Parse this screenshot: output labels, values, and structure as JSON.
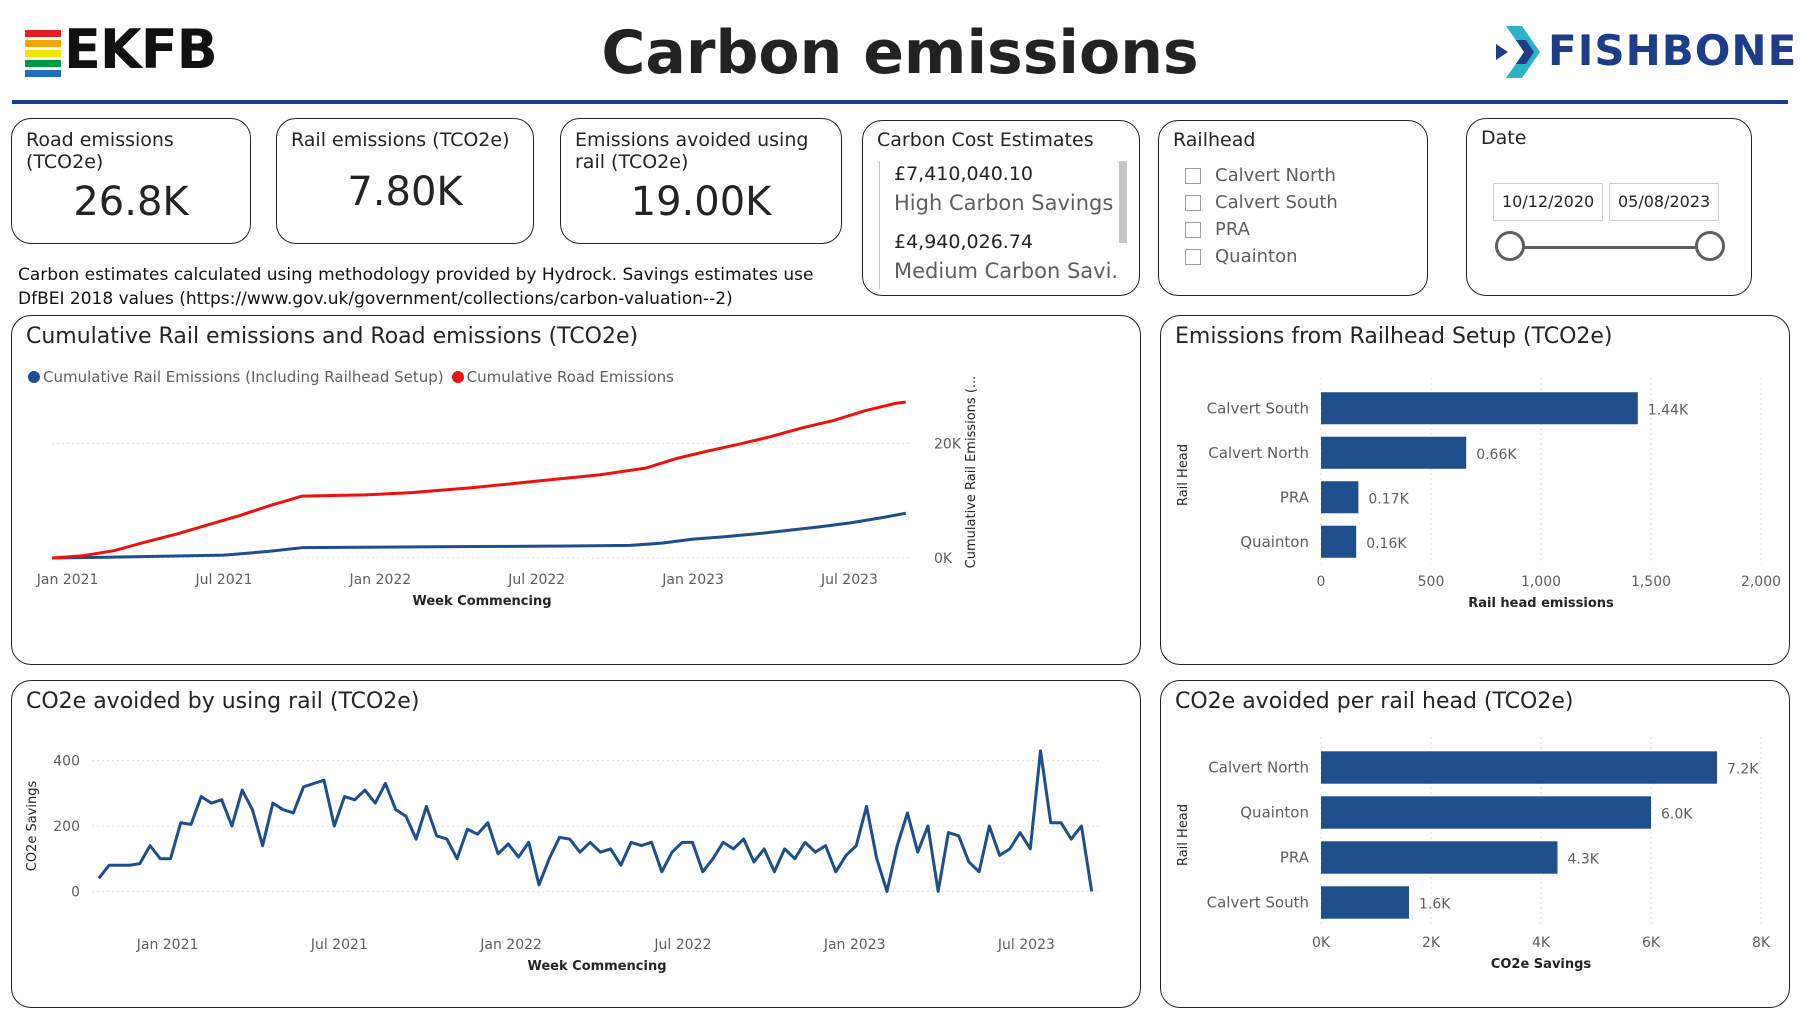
{
  "header": {
    "title": "Carbon emissions",
    "left_logo_text": "EKFB",
    "right_logo_text": "FISHBONE",
    "rule_color": "#1f3c88"
  },
  "kpis": {
    "road": {
      "label": "Road emissions (TCO2e)",
      "value": "26.8K"
    },
    "rail": {
      "label": "Rail emissions (TCO2e)",
      "value": "7.80K"
    },
    "avoided": {
      "label": "Emissions avoided using rail (TCO2e)",
      "value": "19.00K"
    }
  },
  "cost": {
    "title": "Carbon Cost Estimates",
    "items": [
      {
        "value": "£7,410,040.10",
        "label": "High Carbon Savings"
      },
      {
        "value": "£4,940,026.74",
        "label": "Medium Carbon Savi..."
      }
    ]
  },
  "railhead_filter": {
    "title": "Railhead",
    "options": [
      "Calvert North",
      "Calvert South",
      "PRA",
      "Quainton"
    ]
  },
  "date_filter": {
    "title": "Date",
    "start": "10/12/2020",
    "end": "05/08/2023"
  },
  "note": "Carbon estimates calculated using methodology provided by Hydrock. Savings estimates use DfBEI 2018 values (https://www.gov.uk/government/collections/carbon-valuation--2)",
  "colors": {
    "navy": "#1f4e8c",
    "red": "#ee1111"
  },
  "chart_data": [
    {
      "type": "line",
      "id": "cumulative",
      "title": "Cumulative Rail emissions and Road emissions (TCO2e)",
      "xlabel": "Week Commencing",
      "ylabel": "Cumulative Rail Emissions (...",
      "x_ticks": [
        "Jan 2021",
        "Jul 2021",
        "Jan 2022",
        "Jul 2022",
        "Jan 2023",
        "Jul 2023"
      ],
      "x_range": [
        2020.95,
        2023.7
      ],
      "y_ticks": [
        "0K",
        "20K"
      ],
      "ylim": [
        0,
        30000
      ],
      "series": [
        {
          "name": "Cumulative Rail Emissions (Including Railhead Setup)",
          "color": "#1f4e8c",
          "x": [
            2020.95,
            2021.1,
            2021.3,
            2021.5,
            2021.57,
            2021.65,
            2021.75,
            2022.0,
            2022.3,
            2022.6,
            2022.8,
            2022.9,
            2023.0,
            2023.1,
            2023.2,
            2023.3,
            2023.4,
            2023.5,
            2023.6,
            2023.68
          ],
          "y": [
            0,
            100,
            300,
            500,
            800,
            1200,
            1800,
            1900,
            2000,
            2100,
            2200,
            2600,
            3300,
            3700,
            4200,
            4800,
            5400,
            6100,
            7000,
            7800
          ]
        },
        {
          "name": "Cumulative Road Emissions",
          "color": "#ee1111",
          "x": [
            2020.95,
            2021.05,
            2021.15,
            2021.25,
            2021.35,
            2021.45,
            2021.55,
            2021.65,
            2021.75,
            2021.95,
            2022.1,
            2022.3,
            2022.5,
            2022.7,
            2022.85,
            2022.95,
            2023.05,
            2023.15,
            2023.25,
            2023.35,
            2023.45,
            2023.55,
            2023.65,
            2023.68
          ],
          "y": [
            0,
            400,
            1300,
            2800,
            4200,
            5800,
            7400,
            9200,
            10800,
            11000,
            11400,
            12300,
            13400,
            14500,
            15700,
            17400,
            18700,
            19900,
            21200,
            22700,
            24000,
            25700,
            27000,
            27200
          ]
        }
      ]
    },
    {
      "type": "bar",
      "id": "setup",
      "title": "Emissions from Railhead Setup (TCO2e)",
      "orientation": "horizontal",
      "categories": [
        "Calvert South",
        "Calvert North",
        "PRA",
        "Quainton"
      ],
      "values": [
        1440,
        660,
        170,
        160
      ],
      "labels": [
        "1.44K",
        "0.66K",
        "0.17K",
        "0.16K"
      ],
      "xlabel": "Rail head emissions",
      "ylabel": "Rail Head",
      "x_ticks": [
        "0",
        "500",
        "1,000",
        "1,500",
        "2,000"
      ],
      "xlim": [
        0,
        2000
      ]
    },
    {
      "type": "line",
      "id": "avoided",
      "title": "CO2e avoided by using rail (TCO2e)",
      "xlabel": "Week Commencing",
      "ylabel": "CO2e Savings",
      "x_ticks": [
        "Jan 2021",
        "Jul 2021",
        "Jan 2022",
        "Jul 2022",
        "Jan 2023",
        "Jul 2023"
      ],
      "x_range": [
        2020.78,
        2023.72
      ],
      "y_ticks": [
        "0",
        "200",
        "400"
      ],
      "ylim": [
        -60,
        460
      ],
      "series": [
        {
          "name": "CO2e Savings",
          "color": "#1f4e8c",
          "values": [
            40,
            80,
            80,
            80,
            85,
            140,
            100,
            100,
            210,
            205,
            290,
            270,
            280,
            200,
            310,
            250,
            140,
            270,
            250,
            240,
            320,
            330,
            340,
            200,
            290,
            280,
            310,
            270,
            330,
            250,
            230,
            160,
            260,
            170,
            160,
            100,
            190,
            175,
            210,
            115,
            145,
            105,
            150,
            20,
            100,
            165,
            160,
            120,
            150,
            120,
            130,
            80,
            150,
            140,
            150,
            60,
            120,
            150,
            150,
            60,
            100,
            150,
            130,
            160,
            90,
            130,
            60,
            130,
            100,
            150,
            120,
            140,
            60,
            110,
            140,
            260,
            100,
            0,
            140,
            240,
            120,
            200,
            0,
            180,
            170,
            90,
            60,
            200,
            110,
            130,
            180,
            130,
            430,
            210,
            210,
            160,
            200,
            0
          ]
        }
      ]
    },
    {
      "type": "bar",
      "id": "avoided_per_railhead",
      "title": "CO2e avoided per rail head (TCO2e)",
      "orientation": "horizontal",
      "categories": [
        "Calvert North",
        "Quainton",
        "PRA",
        "Calvert South"
      ],
      "values": [
        7200,
        6000,
        4300,
        1600
      ],
      "labels": [
        "7.2K",
        "6.0K",
        "4.3K",
        "1.6K"
      ],
      "xlabel": "CO2e Savings",
      "ylabel": "Rail Head",
      "x_ticks": [
        "0K",
        "2K",
        "4K",
        "6K",
        "8K"
      ],
      "xlim": [
        0,
        8000
      ]
    }
  ]
}
